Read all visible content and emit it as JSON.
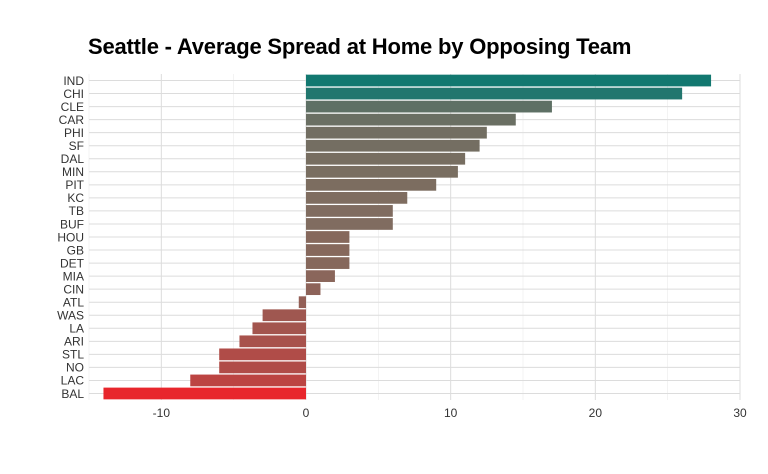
{
  "chart_data": {
    "type": "bar",
    "orientation": "horizontal",
    "title": "Seattle - Average Spread at Home by Opposing Team",
    "xlabel": "",
    "ylabel": "",
    "xlim": [
      -15,
      30
    ],
    "x_ticks": [
      -10,
      0,
      10,
      20,
      30
    ],
    "grid": true,
    "legend": "none",
    "categories": [
      "IND",
      "CHI",
      "CLE",
      "CAR",
      "PHI",
      "SF",
      "DAL",
      "MIN",
      "PIT",
      "KC",
      "TB",
      "BUF",
      "HOU",
      "GB",
      "DET",
      "MIA",
      "CIN",
      "ATL",
      "WAS",
      "LA",
      "ARI",
      "STL",
      "NO",
      "LAC",
      "BAL"
    ],
    "values": [
      28,
      26,
      17,
      14.5,
      12.5,
      12,
      11,
      10.5,
      9,
      7,
      6,
      6,
      3,
      3,
      3,
      2,
      1,
      -0.5,
      -3,
      -3.7,
      -4.6,
      -6,
      -6,
      -8,
      -14
    ],
    "color_scale": {
      "high": "#127870",
      "mid": "#7f6d60",
      "low": "#e8262c"
    }
  }
}
